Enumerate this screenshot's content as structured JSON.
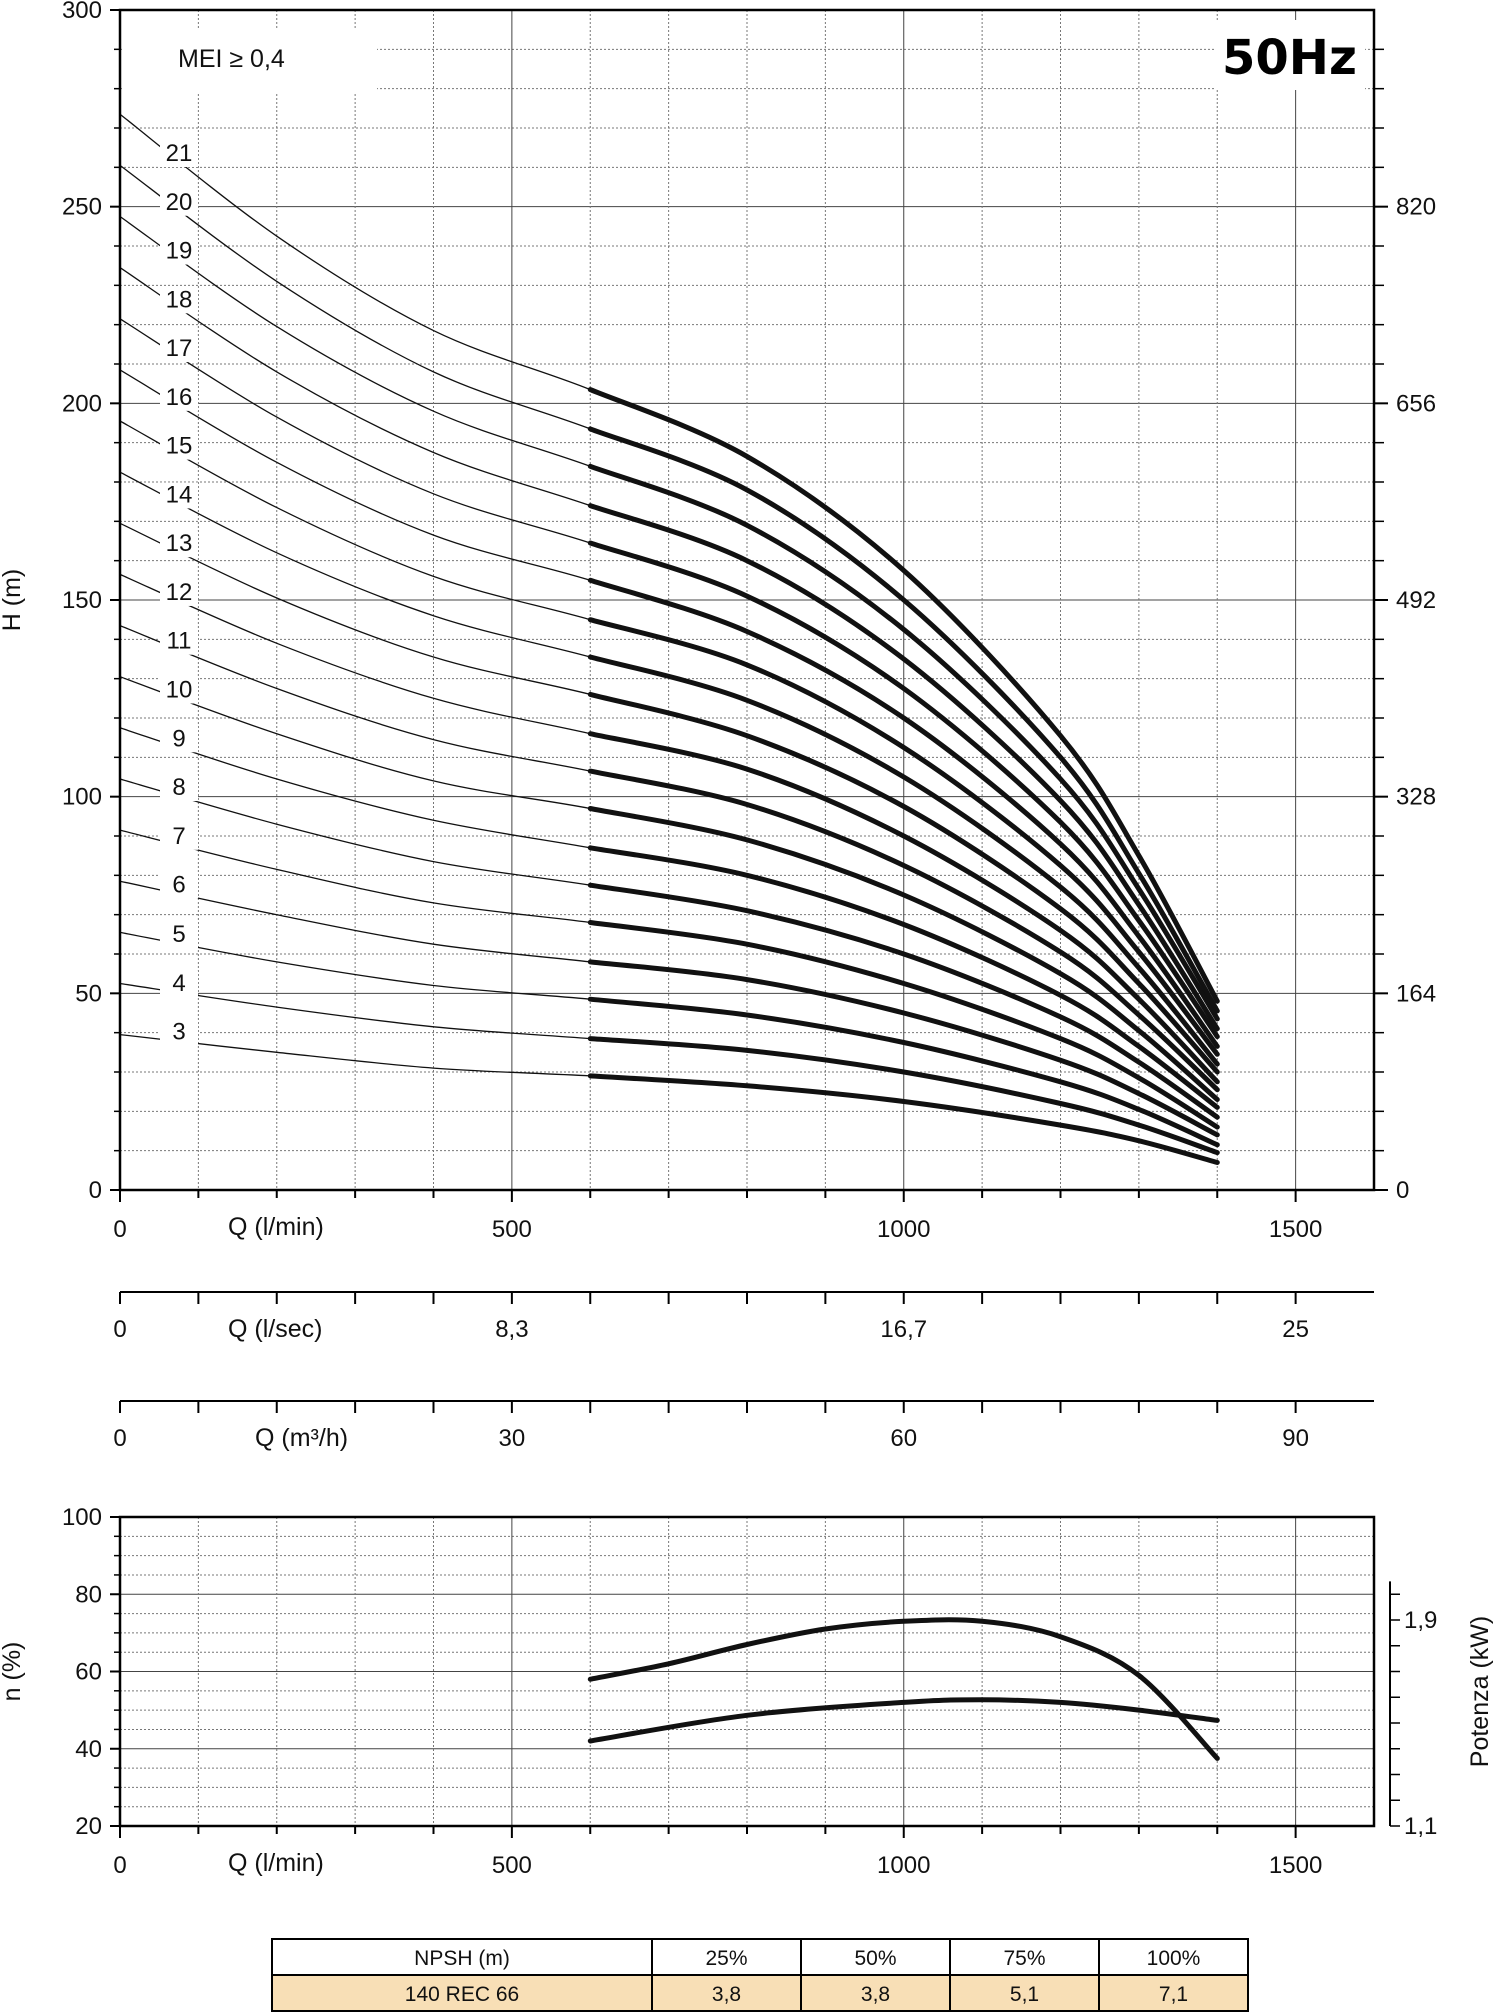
{
  "chart_data": [
    {
      "type": "line",
      "badge": "50Hz",
      "mei_label": "MEI ≥ 0,4",
      "ylabel": "H (m)",
      "xlabel": "Q (l/min)",
      "xlim": [
        0,
        1600
      ],
      "ylim": [
        0,
        300
      ],
      "y_ticks": [
        "0",
        "50",
        "100",
        "150",
        "200",
        "250",
        "300"
      ],
      "x_ticks": [
        "0",
        "500",
        "1000",
        "1500"
      ],
      "y2_ticks": [
        "0",
        "164",
        "328",
        "492",
        "656",
        "820"
      ],
      "operating_range": [
        600,
        1400
      ],
      "series": [
        {
          "name": "3",
          "values": [
            [
              0,
              39.5
            ],
            [
              200,
              35
            ],
            [
              400,
              31
            ],
            [
              600,
              29
            ],
            [
              800,
              26.5
            ],
            [
              1000,
              22.5
            ],
            [
              1200,
              16.5
            ],
            [
              1300,
              12.5
            ],
            [
              1400,
              7
            ]
          ]
        },
        {
          "name": "4",
          "values": [
            [
              0,
              52.5
            ],
            [
              200,
              46.5
            ],
            [
              400,
              41.5
            ],
            [
              600,
              38.5
            ],
            [
              800,
              35.5
            ],
            [
              1000,
              30
            ],
            [
              1200,
              22
            ],
            [
              1300,
              16.5
            ],
            [
              1400,
              9.5
            ]
          ]
        },
        {
          "name": "5",
          "values": [
            [
              0,
              65.5
            ],
            [
              200,
              58
            ],
            [
              400,
              52
            ],
            [
              600,
              48.5
            ],
            [
              800,
              44.5
            ],
            [
              1000,
              37.5
            ],
            [
              1200,
              27.5
            ],
            [
              1300,
              20.5
            ],
            [
              1400,
              11.5
            ]
          ]
        },
        {
          "name": "6",
          "values": [
            [
              0,
              78.5
            ],
            [
              200,
              70
            ],
            [
              400,
              62.5
            ],
            [
              600,
              58
            ],
            [
              800,
              53.5
            ],
            [
              1000,
              45
            ],
            [
              1200,
              33
            ],
            [
              1300,
              24.5
            ],
            [
              1400,
              14
            ]
          ]
        },
        {
          "name": "7",
          "values": [
            [
              0,
              91.5
            ],
            [
              200,
              81.5
            ],
            [
              400,
              73
            ],
            [
              600,
              68
            ],
            [
              800,
              62.5
            ],
            [
              1000,
              52.5
            ],
            [
              1200,
              38.5
            ],
            [
              1300,
              28.5
            ],
            [
              1400,
              16
            ]
          ]
        },
        {
          "name": "8",
          "values": [
            [
              0,
              104.5
            ],
            [
              200,
              93
            ],
            [
              400,
              83.5
            ],
            [
              600,
              77.5
            ],
            [
              800,
              71
            ],
            [
              1000,
              60
            ],
            [
              1200,
              44
            ],
            [
              1300,
              32.5
            ],
            [
              1400,
              18.5
            ]
          ]
        },
        {
          "name": "9",
          "values": [
            [
              0,
              117.5
            ],
            [
              200,
              104.5
            ],
            [
              400,
              94
            ],
            [
              600,
              87
            ],
            [
              800,
              80
            ],
            [
              1000,
              67.5
            ],
            [
              1200,
              49.5
            ],
            [
              1300,
              36.5
            ],
            [
              1400,
              21
            ]
          ]
        },
        {
          "name": "10",
          "values": [
            [
              0,
              130.5
            ],
            [
              200,
              116
            ],
            [
              400,
              104
            ],
            [
              600,
              97
            ],
            [
              800,
              89
            ],
            [
              1000,
              75
            ],
            [
              1200,
              55
            ],
            [
              1300,
              40.5
            ],
            [
              1400,
              23
            ]
          ]
        },
        {
          "name": "11",
          "values": [
            [
              0,
              143.5
            ],
            [
              200,
              127.5
            ],
            [
              400,
              114.5
            ],
            [
              600,
              106.5
            ],
            [
              800,
              98
            ],
            [
              1000,
              82.5
            ],
            [
              1200,
              60.5
            ],
            [
              1300,
              44.5
            ],
            [
              1400,
              25.5
            ]
          ]
        },
        {
          "name": "12",
          "values": [
            [
              0,
              156.5
            ],
            [
              200,
              139
            ],
            [
              400,
              125
            ],
            [
              600,
              116
            ],
            [
              800,
              107
            ],
            [
              1000,
              90
            ],
            [
              1200,
              66
            ],
            [
              1300,
              48.5
            ],
            [
              1400,
              27.5
            ]
          ]
        },
        {
          "name": "13",
          "values": [
            [
              0,
              169.5
            ],
            [
              200,
              150.5
            ],
            [
              400,
              135.5
            ],
            [
              600,
              126
            ],
            [
              800,
              115.5
            ],
            [
              1000,
              97.5
            ],
            [
              1200,
              71.5
            ],
            [
              1300,
              52.5
            ],
            [
              1400,
              30
            ]
          ]
        },
        {
          "name": "14",
          "values": [
            [
              0,
              182.5
            ],
            [
              200,
              162
            ],
            [
              400,
              146
            ],
            [
              600,
              135.5
            ],
            [
              800,
              124.5
            ],
            [
              1000,
              105
            ],
            [
              1200,
              77
            ],
            [
              1300,
              56.5
            ],
            [
              1400,
              32
            ]
          ]
        },
        {
          "name": "15",
          "values": [
            [
              0,
              195.5
            ],
            [
              200,
              173.5
            ],
            [
              400,
              156
            ],
            [
              600,
              145
            ],
            [
              800,
              133.5
            ],
            [
              1000,
              112.5
            ],
            [
              1200,
              82.5
            ],
            [
              1300,
              60.5
            ],
            [
              1400,
              34.5
            ]
          ]
        },
        {
          "name": "16",
          "values": [
            [
              0,
              208.5
            ],
            [
              200,
              185
            ],
            [
              400,
              166.5
            ],
            [
              600,
              155
            ],
            [
              800,
              142
            ],
            [
              1000,
              120
            ],
            [
              1200,
              88
            ],
            [
              1300,
              64.5
            ],
            [
              1400,
              36.5
            ]
          ]
        },
        {
          "name": "17",
          "values": [
            [
              0,
              221.5
            ],
            [
              200,
              196.5
            ],
            [
              400,
              177
            ],
            [
              600,
              164.5
            ],
            [
              800,
              151
            ],
            [
              1000,
              127.5
            ],
            [
              1200,
              93.5
            ],
            [
              1300,
              68.5
            ],
            [
              1400,
              39
            ]
          ]
        },
        {
          "name": "18",
          "values": [
            [
              0,
              234.5
            ],
            [
              200,
              208
            ],
            [
              400,
              187.5
            ],
            [
              600,
              174
            ],
            [
              800,
              160
            ],
            [
              1000,
              135
            ],
            [
              1200,
              99
            ],
            [
              1300,
              72.5
            ],
            [
              1400,
              41
            ]
          ]
        },
        {
          "name": "19",
          "values": [
            [
              0,
              247.5
            ],
            [
              200,
              219.5
            ],
            [
              400,
              198
            ],
            [
              600,
              184
            ],
            [
              800,
              169
            ],
            [
              1000,
              142.5
            ],
            [
              1200,
              104.5
            ],
            [
              1300,
              76.5
            ],
            [
              1400,
              43.5
            ]
          ]
        },
        {
          "name": "20",
          "values": [
            [
              0,
              260.5
            ],
            [
              200,
              231
            ],
            [
              400,
              208
            ],
            [
              600,
              193.5
            ],
            [
              800,
              178
            ],
            [
              1000,
              150
            ],
            [
              1200,
              110
            ],
            [
              1300,
              80.5
            ],
            [
              1400,
              45.5
            ]
          ]
        },
        {
          "name": "21",
          "values": [
            [
              0,
              273.5
            ],
            [
              200,
              242.5
            ],
            [
              400,
              218.5
            ],
            [
              600,
              203.5
            ],
            [
              800,
              186.5
            ],
            [
              1000,
              157.5
            ],
            [
              1200,
              115.5
            ],
            [
              1300,
              85
            ],
            [
              1400,
              48
            ]
          ]
        }
      ]
    },
    {
      "type": "line",
      "ylabel": "n (%)",
      "y2label": "Potenza (kW)",
      "xlabel": "Q (l/min)",
      "xlim": [
        0,
        1600
      ],
      "ylim": [
        20,
        100
      ],
      "y_ticks": [
        "20",
        "40",
        "60",
        "80",
        "100"
      ],
      "x_ticks": [
        "0",
        "500",
        "1000",
        "1500"
      ],
      "y2_ticks": [
        "1,1",
        "1,9"
      ],
      "efficiency": [
        [
          600,
          58
        ],
        [
          700,
          62
        ],
        [
          800,
          67
        ],
        [
          900,
          71
        ],
        [
          1000,
          73
        ],
        [
          1100,
          73
        ],
        [
          1200,
          69
        ],
        [
          1300,
          59
        ],
        [
          1400,
          37.5
        ]
      ],
      "power_kw": [
        [
          600,
          1.43
        ],
        [
          800,
          1.53
        ],
        [
          1000,
          1.58
        ],
        [
          1100,
          1.59
        ],
        [
          1200,
          1.58
        ],
        [
          1300,
          1.55
        ],
        [
          1400,
          1.51
        ]
      ],
      "y2lim": [
        1.1,
        2.3
      ]
    }
  ],
  "alt_axes": [
    {
      "label": "Q (l/sec)",
      "ticks": [
        "0",
        "8,3",
        "16,7",
        "25"
      ]
    },
    {
      "label": "Q (m³/h)",
      "ticks": [
        "0",
        "30",
        "60",
        "90"
      ]
    }
  ],
  "npsh_table": {
    "header": [
      "NPSH (m)",
      "25%",
      "50%",
      "75%",
      "100%"
    ],
    "row": [
      "140 REC 66",
      "3,8",
      "3,8",
      "5,1",
      "7,1"
    ],
    "row_color": "#f8dfb6"
  }
}
